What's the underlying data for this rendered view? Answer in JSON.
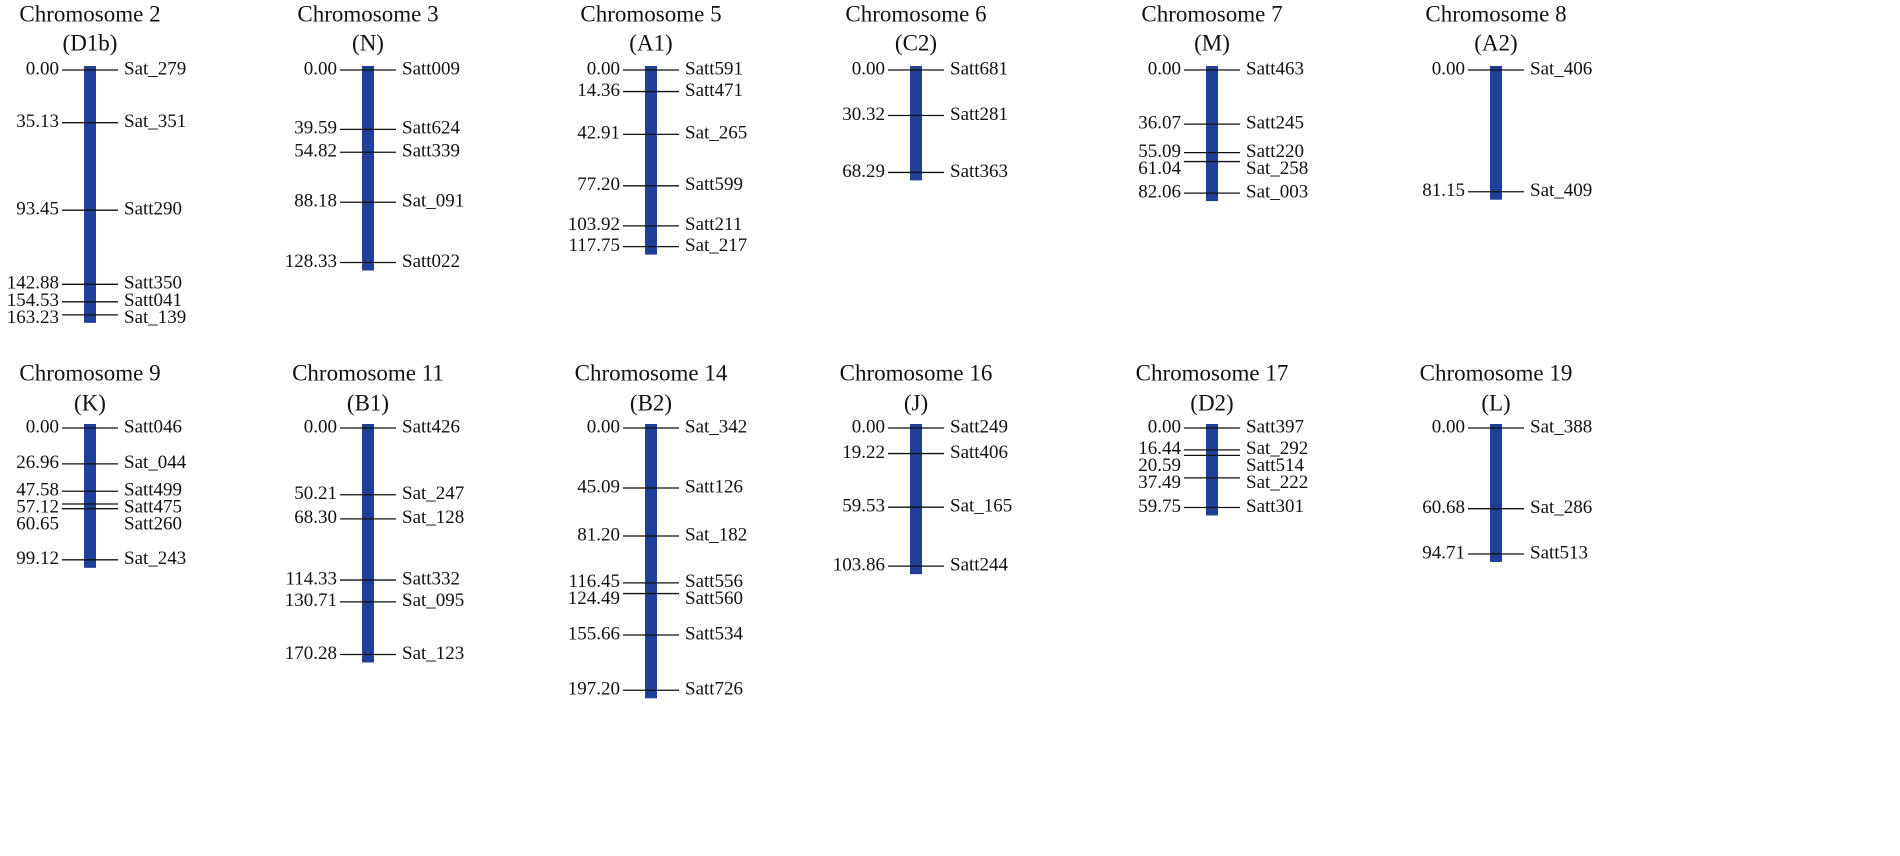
{
  "chromosomes": [
    {
      "title": "Chromosome 2",
      "group": "(D1b)",
      "markers": [
        {
          "name": "Sat_279",
          "position": {
            "value": 0,
            "label": "0.00"
          }
        },
        {
          "name": "Sat_351",
          "position": 35.13
        },
        {
          "name": "Satt290",
          "position": 93.45
        },
        {
          "name": "Satt350",
          "position": 142.88
        },
        {
          "name": "Satt041",
          "position": 154.53
        },
        {
          "name": "Sat_139",
          "position": 163.23
        }
      ]
    },
    {
      "title": "Chromosome 3",
      "group": "(N)",
      "markers": [
        {
          "name": "Satt009",
          "position": {
            "value": 0,
            "label": "0.00"
          }
        },
        {
          "name": "Satt624",
          "position": 39.59
        },
        {
          "name": "Satt339",
          "position": 54.82
        },
        {
          "name": "Sat_091",
          "position": 88.18
        },
        {
          "name": "Satt022",
          "position": 128.33
        }
      ]
    },
    {
      "title": "Chromosome 5",
      "group": "(A1)",
      "markers": [
        {
          "name": "Satt591",
          "position": {
            "value": 0,
            "label": "0.00"
          }
        },
        {
          "name": "Satt471",
          "position": 14.36
        },
        {
          "name": "Sat_265",
          "position": 42.91
        },
        {
          "name": "Satt599",
          "position": {
            "value": 77.2,
            "label": "77.20"
          }
        },
        {
          "name": "Satt211",
          "position": 103.92
        },
        {
          "name": "Sat_217",
          "position": 117.75
        }
      ]
    },
    {
      "title": "Chromosome 6",
      "group": "(C2)",
      "markers": [
        {
          "name": "Satt681",
          "position": {
            "value": 0,
            "label": "0.00"
          }
        },
        {
          "name": "Satt281",
          "position": 30.32
        },
        {
          "name": "Satt363",
          "position": 68.29
        }
      ]
    },
    {
      "title": "Chromosome 7",
      "group": "(M)",
      "markers": [
        {
          "name": "Satt463",
          "position": {
            "value": 0,
            "label": "0.00"
          }
        },
        {
          "name": "Satt245",
          "position": 36.07
        },
        {
          "name": "Satt220",
          "position": 55.09
        },
        {
          "name": "Sat_258",
          "position": 61.04
        },
        {
          "name": "Sat_003",
          "position": 82.06
        }
      ]
    },
    {
      "title": "Chromosome 8",
      "group": "(A2)",
      "markers": [
        {
          "name": "Sat_406",
          "position": {
            "value": 0,
            "label": "0.00"
          }
        },
        {
          "name": "Sat_409",
          "position": 81.15
        }
      ]
    },
    {
      "title": "Chromosome 9",
      "group": "(K)",
      "markers": [
        {
          "name": "Satt046",
          "position": {
            "value": 0,
            "label": "0.00"
          }
        },
        {
          "name": "Sat_044",
          "position": 26.96
        },
        {
          "name": "Satt499",
          "position": 47.58
        },
        {
          "name": "Satt475",
          "position": 57.12
        },
        {
          "name": "Satt260",
          "position": 60.65
        },
        {
          "name": "Sat_243",
          "position": 99.12
        }
      ]
    },
    {
      "title": "Chromosome 11",
      "group": "(B1)",
      "markers": [
        {
          "name": "Satt426",
          "position": {
            "value": 0,
            "label": "0.00"
          }
        },
        {
          "name": "Sat_247",
          "position": 50.21
        },
        {
          "name": "Sat_128",
          "position": {
            "value": 68.3,
            "label": "68.30"
          }
        },
        {
          "name": "Satt332",
          "position": 114.33
        },
        {
          "name": "Sat_095",
          "position": 130.71
        },
        {
          "name": "Sat_123",
          "position": 170.28
        }
      ]
    },
    {
      "title": "Chromosome 14",
      "group": "(B2)",
      "markers": [
        {
          "name": "Sat_342",
          "position": {
            "value": 0,
            "label": "0.00"
          }
        },
        {
          "name": "Satt126",
          "position": 45.09
        },
        {
          "name": "Sat_182",
          "position": {
            "value": 81.2,
            "label": "81.20"
          }
        },
        {
          "name": "Satt556",
          "position": 116.45
        },
        {
          "name": "Satt560",
          "position": 124.49
        },
        {
          "name": "Satt534",
          "position": 155.66
        },
        {
          "name": "Satt726",
          "position": {
            "value": 197.2,
            "label": "197.20"
          }
        }
      ]
    },
    {
      "title": "Chromosome 16",
      "group": "(J)",
      "markers": [
        {
          "name": "Satt249",
          "position": {
            "value": 0,
            "label": "0.00"
          }
        },
        {
          "name": "Satt406",
          "position": 19.22
        },
        {
          "name": "Sat_165",
          "position": 59.53
        },
        {
          "name": "Satt244",
          "position": 103.86
        }
      ]
    },
    {
      "title": "Chromosome 17",
      "group": "(D2)",
      "markers": [
        {
          "name": "Satt397",
          "position": {
            "value": 0,
            "label": "0.00"
          }
        },
        {
          "name": "Sat_292",
          "position": 16.44
        },
        {
          "name": "Satt514",
          "position": 20.59
        },
        {
          "name": "Sat_222",
          "position": 37.49
        },
        {
          "name": "Satt301",
          "position": 59.75
        }
      ]
    },
    {
      "title": "Chromosome 19",
      "group": "(L)",
      "markers": [
        {
          "name": "Sat_388",
          "position": {
            "value": 0,
            "label": "0.00"
          }
        },
        {
          "name": "Sat_286",
          "position": 60.68
        },
        {
          "name": "Satt513",
          "position": 94.71
        }
      ]
    }
  ]
}
